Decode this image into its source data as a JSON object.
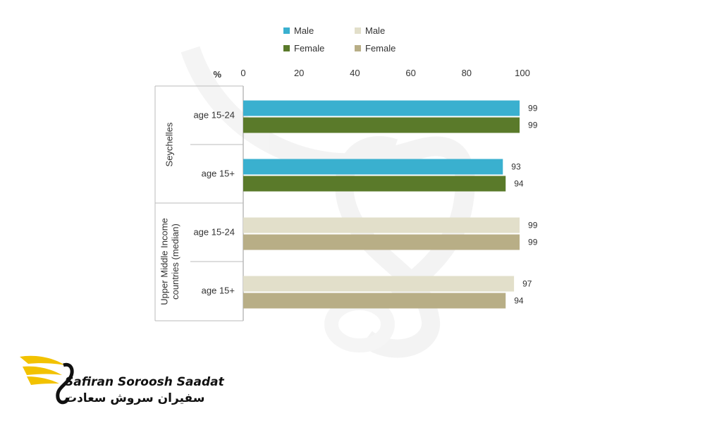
{
  "chart_data": {
    "type": "bar",
    "orientation": "horizontal",
    "axis_unit_label": "%",
    "xlim": [
      0,
      100
    ],
    "ticks": [
      0,
      20,
      40,
      60,
      80,
      100
    ],
    "groups": [
      {
        "name": "Seychelles",
        "rows": [
          {
            "label": "age 15-24",
            "male": 99,
            "female": 99
          },
          {
            "label": "age 15+",
            "male": 93,
            "female": 94
          }
        ],
        "colors": {
          "male": "#3ab0cf",
          "female": "#5a7a2a"
        }
      },
      {
        "name": "Upper Middle Income countries (median)",
        "rows": [
          {
            "label": "age 15-24",
            "male": 99,
            "female": 99
          },
          {
            "label": "age 15+",
            "male": 97,
            "female": 94
          }
        ],
        "colors": {
          "male": "#e2dfca",
          "female": "#b8ae86"
        }
      }
    ],
    "legend": [
      {
        "label": "Male",
        "color": "#3ab0cf"
      },
      {
        "label": "Female",
        "color": "#5a7a2a"
      },
      {
        "label": "Male",
        "color": "#e2dfca"
      },
      {
        "label": "Female",
        "color": "#b8ae86"
      }
    ],
    "legend_position": "top"
  },
  "watermark": {
    "brand_en": "Safiran Soroosh Saadat",
    "brand_fa": "سفیران سروش سعادت",
    "logo_colors": {
      "wing": "#f2c200",
      "bird": "#111111"
    }
  }
}
